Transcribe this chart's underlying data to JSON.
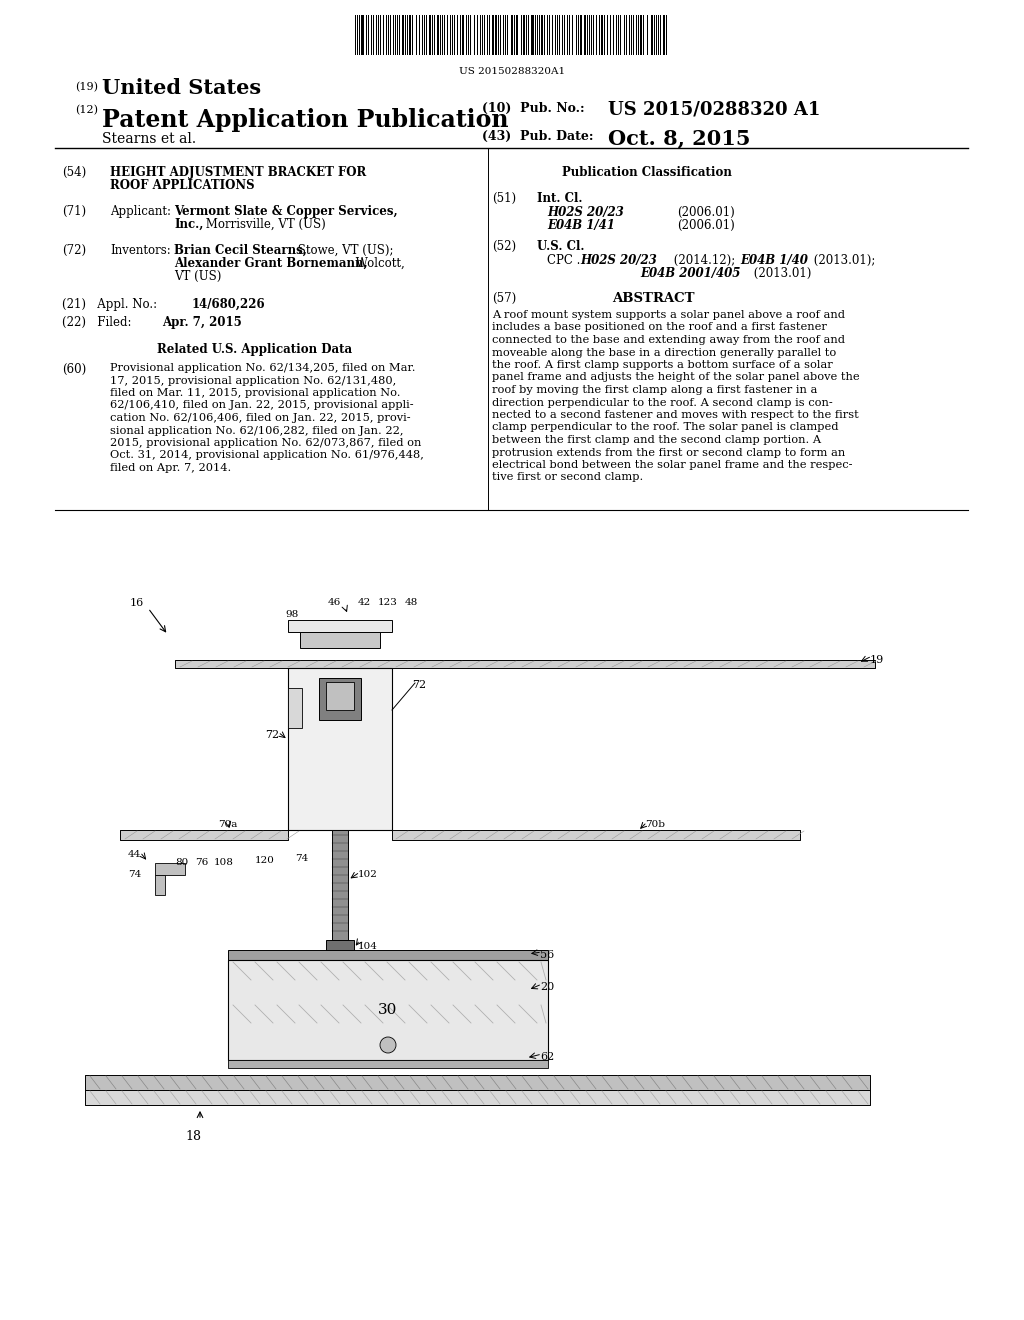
{
  "background_color": "#ffffff",
  "barcode_text": "US 20150288320A1",
  "title_bold": "HEIGHT ADJUSTMENT BRACKET FOR ROOF APPLICATIONS",
  "country_label": "(19)",
  "country_name": "United States",
  "pub_type_label": "(12)",
  "pub_type_name": "Patent Application Publication",
  "pub_no_label": "(10) Pub. No.:",
  "pub_no_value": "US 2015/0288320 A1",
  "pub_date_label": "(43) Pub. Date:",
  "pub_date_value": "Oct. 8, 2015",
  "inventor_line": "Stearns et al.",
  "abstract_text": "A roof mount system supports a solar panel above a roof and includes a base positioned on the roof and a first fastener connected to the base and extending away from the roof and moveable along the base in a direction generally parallel to the roof. A first clamp supports a bottom surface of a solar panel frame and adjusts the height of the solar panel above the roof by moving the first clamp along a first fastener in a direction perpendicular to the roof. A second clamp is con-nected to a second fastener and moves with respect to the first clamp perpendicular to the roof. The solar panel is clamped between the first clamp and the second clamp portion. A protrusion extends from the first or second clamp to form an electrical bond between the solar panel frame and the respec-tive first or second clamp."
}
